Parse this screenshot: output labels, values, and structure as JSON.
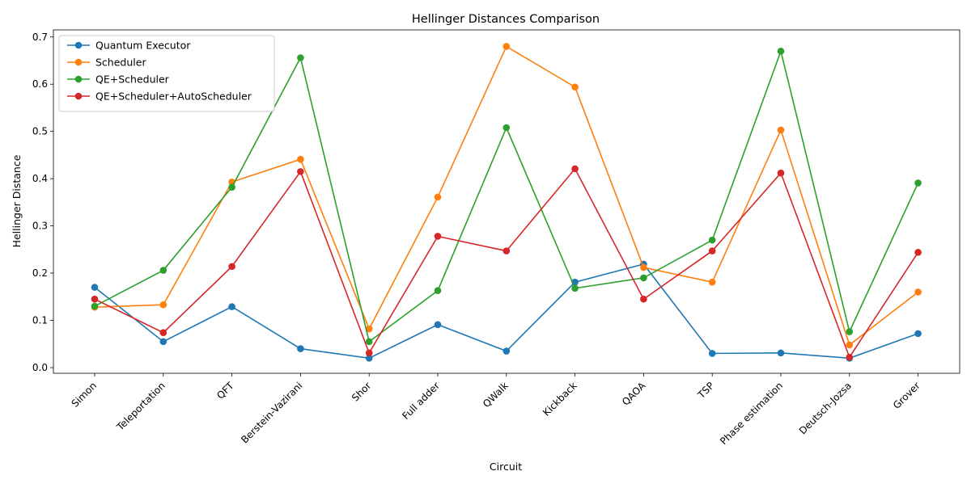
{
  "chart_data": {
    "type": "line",
    "title": "Hellinger Distances Comparison",
    "xlabel": "Circuit",
    "ylabel": "Hellinger Distance",
    "categories": [
      "Simon",
      "Teleportation",
      "QFT",
      "Berstein-Vazirani",
      "Shor",
      "Full adder",
      "QWalk",
      "Kickback",
      "QAOA",
      "TSP",
      "Phase estimation",
      "Deutsch-Jozsa",
      "Grover"
    ],
    "ylim": [
      -0.012,
      0.715
    ],
    "yticks": [
      0.0,
      0.1,
      0.2,
      0.3,
      0.4,
      0.5,
      0.6,
      0.7
    ],
    "ytick_labels": [
      "0.0",
      "0.1",
      "0.2",
      "0.3",
      "0.4",
      "0.5",
      "0.6",
      "0.7"
    ],
    "grid": false,
    "legend_position": "top-left",
    "series": [
      {
        "name": "Quantum Executor",
        "color": "#1f77b4",
        "values": [
          0.17,
          0.055,
          0.129,
          0.04,
          0.02,
          0.091,
          0.035,
          0.181,
          0.219,
          0.03,
          0.031,
          0.02,
          0.072
        ]
      },
      {
        "name": "Scheduler",
        "color": "#ff7f0e",
        "values": [
          0.128,
          0.133,
          0.393,
          0.441,
          0.082,
          0.361,
          0.68,
          0.594,
          0.212,
          0.181,
          0.503,
          0.048,
          0.16
        ]
      },
      {
        "name": "QE+Scheduler",
        "color": "#2ca02c",
        "values": [
          0.13,
          0.206,
          0.382,
          0.656,
          0.055,
          0.163,
          0.508,
          0.168,
          0.19,
          0.27,
          0.67,
          0.076,
          0.391
        ]
      },
      {
        "name": "QE+Scheduler+AutoScheduler",
        "color": "#d62728",
        "values": [
          0.145,
          0.074,
          0.214,
          0.415,
          0.031,
          0.278,
          0.247,
          0.421,
          0.145,
          0.247,
          0.412,
          0.022,
          0.244
        ]
      }
    ]
  }
}
